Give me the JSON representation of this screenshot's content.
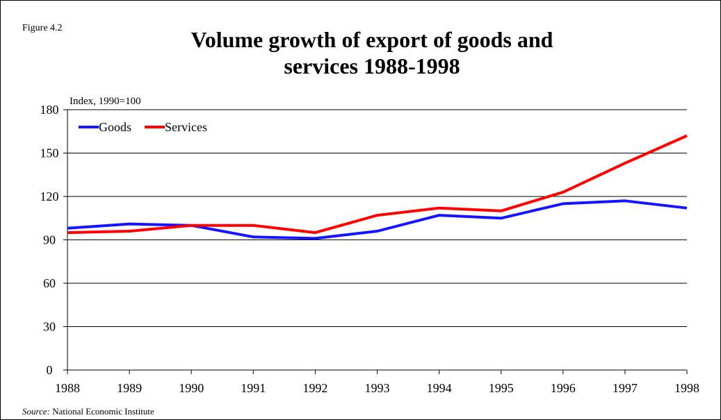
{
  "figure_label": "Figure 4.2",
  "source": {
    "prefix": "Source:",
    "text": " National Economic Institute"
  },
  "chart_data": {
    "type": "line",
    "title_lines": [
      "Volume growth of export of goods and",
      "services 1988-1998"
    ],
    "ylabel": "Index, 1990=100",
    "xlabel": "",
    "x": [
      "1988",
      "1989",
      "1990",
      "1991",
      "1992",
      "1993",
      "1994",
      "1995",
      "1996",
      "1997",
      "1998"
    ],
    "ylim": [
      0,
      180
    ],
    "yticks": [
      0,
      30,
      60,
      90,
      120,
      150,
      180
    ],
    "grid": true,
    "legend_position": "top-left",
    "series": [
      {
        "name": "Goods",
        "color": "#1414ff",
        "values": [
          98,
          101,
          100,
          92,
          91,
          96,
          107,
          105,
          115,
          117,
          112
        ]
      },
      {
        "name": "Services",
        "color": "#ff0000",
        "values": [
          95,
          96,
          100,
          100,
          95,
          107,
          112,
          110,
          123,
          143,
          162
        ]
      }
    ]
  }
}
